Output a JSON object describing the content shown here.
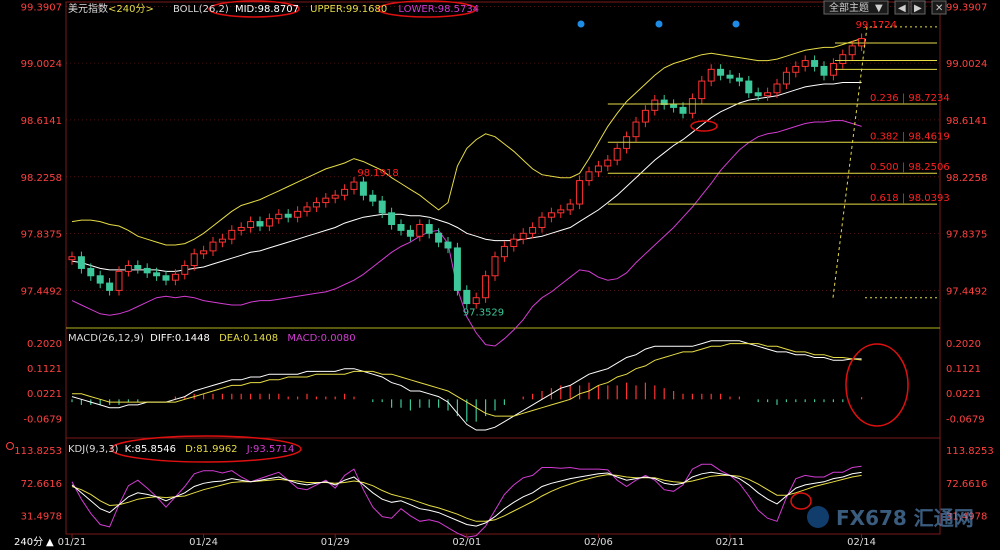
{
  "instrument": "美元指数",
  "period": "240分",
  "toolbar": {
    "theme_label": "全部主题"
  },
  "indicators": {
    "boll": {
      "prefix": "BOLL(26,2)",
      "mid": "MID:98.8707",
      "upper": "UPPER:99.1680",
      "lower": "LOWER:98.5734"
    },
    "macd": {
      "prefix": "MACD(26,12,9)",
      "diff": "DIFF:0.1448",
      "dea": "DEA:0.1408",
      "macd": "MACD:0.0080"
    },
    "kdj": {
      "prefix": "KDJ(9,3,3)",
      "k": "K:85.8546",
      "d": "D:81.9962",
      "j": "J:93.5714"
    }
  },
  "watermark": "FX678 汇通网",
  "colors": {
    "up": "#ff3232",
    "down": "#3cc89a",
    "mid": "#ffffff",
    "upper": "#e6dc46",
    "lower": "#d23cd2",
    "fib": "#e6dc46",
    "annot": "#ff2020",
    "axis_text": "#ff4040",
    "grid": "#7a1a1a"
  },
  "chart_data": [
    {
      "type": "candlestick",
      "title": "美元指数 240分",
      "y_ticks": [
        "99.3907",
        "99.0024",
        "98.6141",
        "98.2258",
        "97.8375",
        "97.4492"
      ],
      "ylim": [
        97.2,
        99.42
      ],
      "x_ticks": [
        "01/21",
        "01/24",
        "01/29",
        "02/01",
        "02/06",
        "02/11",
        "02/14"
      ],
      "x_tick_index": [
        0,
        14,
        28,
        42,
        56,
        70,
        84
      ],
      "annotations": {
        "high": "99.1724",
        "swing_high": "98.1918",
        "low": "97.3529"
      },
      "fib_levels": [
        {
          "label": "0.236 | 98.7234",
          "value": 98.7234
        },
        {
          "label": "0.382 | 98.4619",
          "value": 98.4619
        },
        {
          "label": "0.500 | 98.2506",
          "value": 98.2506
        },
        {
          "label": "0.618 | 98.0393",
          "value": 98.0393
        }
      ],
      "close": [
        97.68,
        97.6,
        97.55,
        97.5,
        97.45,
        97.58,
        97.62,
        97.6,
        97.57,
        97.55,
        97.52,
        97.56,
        97.62,
        97.7,
        97.72,
        97.78,
        97.8,
        97.86,
        97.88,
        97.92,
        97.89,
        97.94,
        97.97,
        97.95,
        97.99,
        98.02,
        98.05,
        98.08,
        98.1,
        98.14,
        98.19,
        98.1,
        98.06,
        97.98,
        97.9,
        97.86,
        97.82,
        97.9,
        97.84,
        97.78,
        97.74,
        97.45,
        97.36,
        97.4,
        97.55,
        97.68,
        97.75,
        97.8,
        97.84,
        97.88,
        97.95,
        97.98,
        98.0,
        98.04,
        98.2,
        98.26,
        98.3,
        98.34,
        98.42,
        98.5,
        98.6,
        98.68,
        98.75,
        98.72,
        98.7,
        98.66,
        98.76,
        98.88,
        98.96,
        98.92,
        98.9,
        98.88,
        98.8,
        98.78,
        98.8,
        98.86,
        98.94,
        98.98,
        99.02,
        98.98,
        98.92,
        99.0,
        99.06,
        99.12,
        99.17
      ],
      "boll_mid": [
        97.65,
        97.64,
        97.62,
        97.6,
        97.59,
        97.59,
        97.59,
        97.59,
        97.59,
        97.59,
        97.58,
        97.58,
        97.59,
        97.6,
        97.61,
        97.63,
        97.65,
        97.67,
        97.69,
        97.71,
        97.72,
        97.74,
        97.76,
        97.78,
        97.8,
        97.82,
        97.84,
        97.86,
        97.88,
        97.91,
        97.93,
        97.95,
        97.96,
        97.97,
        97.97,
        97.97,
        97.96,
        97.96,
        97.95,
        97.93,
        97.91,
        97.88,
        97.84,
        97.82,
        97.8,
        97.79,
        97.79,
        97.79,
        97.8,
        97.81,
        97.82,
        97.84,
        97.86,
        97.88,
        97.92,
        97.96,
        98.0,
        98.05,
        98.1,
        98.16,
        98.22,
        98.28,
        98.34,
        98.39,
        98.44,
        98.48,
        98.53,
        98.58,
        98.63,
        98.67,
        98.7,
        98.73,
        98.75,
        98.76,
        98.77,
        98.78,
        98.8,
        98.82,
        98.84,
        98.85,
        98.86,
        98.86,
        98.87,
        98.87,
        98.87
      ],
      "boll_upper": [
        97.92,
        97.93,
        97.93,
        97.92,
        97.9,
        97.89,
        97.86,
        97.82,
        97.8,
        97.78,
        97.76,
        97.76,
        97.77,
        97.8,
        97.84,
        97.89,
        97.94,
        97.99,
        98.03,
        98.05,
        98.07,
        98.1,
        98.13,
        98.16,
        98.19,
        98.22,
        98.25,
        98.28,
        98.3,
        98.32,
        98.35,
        98.33,
        98.3,
        98.27,
        98.22,
        98.18,
        98.14,
        98.1,
        98.05,
        98.0,
        98.05,
        98.3,
        98.42,
        98.48,
        98.52,
        98.5,
        98.45,
        98.4,
        98.34,
        98.28,
        98.24,
        98.23,
        98.22,
        98.22,
        98.25,
        98.35,
        98.46,
        98.57,
        98.66,
        98.74,
        98.8,
        98.86,
        98.92,
        98.97,
        99.0,
        99.02,
        99.04,
        99.06,
        99.07,
        99.06,
        99.05,
        99.04,
        99.03,
        99.02,
        99.02,
        99.03,
        99.05,
        99.07,
        99.09,
        99.1,
        99.11,
        99.11,
        99.13,
        99.15,
        99.17
      ],
      "boll_lower": [
        97.38,
        97.35,
        97.32,
        97.29,
        97.28,
        97.29,
        97.31,
        97.34,
        97.37,
        97.4,
        97.41,
        97.4,
        97.41,
        97.4,
        97.38,
        97.37,
        97.36,
        97.35,
        97.35,
        97.37,
        97.38,
        97.38,
        97.39,
        97.4,
        97.41,
        97.42,
        97.43,
        97.44,
        97.46,
        97.49,
        97.52,
        97.56,
        97.61,
        97.66,
        97.71,
        97.75,
        97.78,
        97.82,
        97.85,
        97.86,
        97.77,
        97.46,
        97.27,
        97.16,
        97.08,
        97.07,
        97.12,
        97.18,
        97.25,
        97.34,
        97.4,
        97.44,
        97.49,
        97.54,
        97.59,
        97.58,
        97.54,
        97.52,
        97.53,
        97.57,
        97.64,
        97.7,
        97.76,
        97.82,
        97.88,
        97.95,
        98.02,
        98.1,
        98.18,
        98.27,
        98.34,
        98.41,
        98.46,
        98.5,
        98.52,
        98.53,
        98.55,
        98.57,
        98.59,
        98.6,
        98.6,
        98.61,
        98.61,
        98.59,
        98.57
      ]
    },
    {
      "type": "bar+line",
      "title": "MACD(26,12,9)",
      "y_ticks": [
        "0.2020",
        "0.1121",
        "0.0221",
        "-0.0679"
      ],
      "ylim": [
        -0.135,
        0.245
      ],
      "diff": [
        0.01,
        0.0,
        -0.01,
        -0.02,
        -0.03,
        -0.03,
        -0.02,
        -0.02,
        -0.01,
        -0.01,
        -0.01,
        0.0,
        0.01,
        0.03,
        0.04,
        0.05,
        0.06,
        0.07,
        0.07,
        0.08,
        0.08,
        0.09,
        0.09,
        0.09,
        0.09,
        0.1,
        0.1,
        0.1,
        0.1,
        0.11,
        0.11,
        0.1,
        0.09,
        0.08,
        0.06,
        0.05,
        0.03,
        0.03,
        0.02,
        0.01,
        -0.01,
        -0.05,
        -0.09,
        -0.11,
        -0.11,
        -0.1,
        -0.08,
        -0.06,
        -0.04,
        -0.02,
        0.0,
        0.02,
        0.04,
        0.05,
        0.07,
        0.09,
        0.1,
        0.11,
        0.13,
        0.15,
        0.16,
        0.18,
        0.19,
        0.19,
        0.19,
        0.19,
        0.19,
        0.2,
        0.21,
        0.21,
        0.21,
        0.21,
        0.2,
        0.19,
        0.18,
        0.17,
        0.17,
        0.16,
        0.16,
        0.15,
        0.15,
        0.14,
        0.14,
        0.145,
        0.145
      ],
      "dea": [
        0.02,
        0.02,
        0.01,
        0.0,
        -0.01,
        -0.01,
        -0.01,
        -0.01,
        -0.01,
        -0.01,
        -0.01,
        -0.01,
        0.0,
        0.01,
        0.02,
        0.03,
        0.04,
        0.05,
        0.05,
        0.06,
        0.06,
        0.07,
        0.07,
        0.08,
        0.08,
        0.08,
        0.09,
        0.09,
        0.09,
        0.09,
        0.1,
        0.1,
        0.1,
        0.09,
        0.09,
        0.08,
        0.07,
        0.06,
        0.05,
        0.04,
        0.03,
        0.01,
        -0.01,
        -0.03,
        -0.05,
        -0.06,
        -0.06,
        -0.06,
        -0.05,
        -0.04,
        -0.03,
        -0.02,
        -0.01,
        0.0,
        0.02,
        0.03,
        0.05,
        0.06,
        0.08,
        0.09,
        0.11,
        0.12,
        0.14,
        0.15,
        0.16,
        0.17,
        0.17,
        0.18,
        0.19,
        0.19,
        0.2,
        0.2,
        0.2,
        0.2,
        0.19,
        0.19,
        0.18,
        0.17,
        0.17,
        0.16,
        0.16,
        0.15,
        0.15,
        0.145,
        0.141
      ],
      "macd": [
        -0.01,
        -0.02,
        -0.02,
        -0.02,
        -0.02,
        -0.02,
        -0.01,
        -0.01,
        0.0,
        0.0,
        0.0,
        0.01,
        0.01,
        0.02,
        0.02,
        0.02,
        0.02,
        0.02,
        0.02,
        0.02,
        0.02,
        0.02,
        0.02,
        0.01,
        0.01,
        0.02,
        0.01,
        0.01,
        0.01,
        0.02,
        0.01,
        0.0,
        -0.01,
        -0.01,
        -0.03,
        -0.03,
        -0.04,
        -0.03,
        -0.03,
        -0.03,
        -0.04,
        -0.06,
        -0.08,
        -0.08,
        -0.06,
        -0.04,
        -0.02,
        0.0,
        0.01,
        0.02,
        0.03,
        0.04,
        0.05,
        0.05,
        0.05,
        0.06,
        0.05,
        0.05,
        0.05,
        0.06,
        0.05,
        0.06,
        0.05,
        0.04,
        0.03,
        0.02,
        0.02,
        0.02,
        0.02,
        0.02,
        0.01,
        0.01,
        0.0,
        -0.01,
        -0.01,
        -0.02,
        -0.01,
        -0.01,
        -0.01,
        -0.01,
        -0.01,
        -0.01,
        -0.01,
        0.0,
        0.008
      ]
    },
    {
      "type": "line",
      "title": "KDJ(9,3,3)",
      "y_ticks": [
        "113.8253",
        "72.6616",
        "31.4978"
      ],
      "ylim": [
        8,
        128
      ],
      "k": [
        70,
        60,
        50,
        40,
        35,
        45,
        55,
        60,
        58,
        55,
        50,
        55,
        60,
        68,
        72,
        74,
        75,
        78,
        76,
        74,
        76,
        78,
        80,
        76,
        72,
        70,
        72,
        74,
        70,
        76,
        80,
        70,
        60,
        52,
        48,
        50,
        45,
        40,
        38,
        35,
        30,
        25,
        20,
        18,
        22,
        30,
        40,
        48,
        55,
        60,
        68,
        72,
        75,
        78,
        80,
        82,
        84,
        85,
        80,
        76,
        78,
        80,
        78,
        72,
        70,
        72,
        80,
        84,
        86,
        84,
        82,
        78,
        70,
        60,
        52,
        46,
        56,
        66,
        70,
        72,
        74,
        78,
        80,
        84,
        85.85
      ],
      "d": [
        68,
        64,
        58,
        50,
        44,
        45,
        48,
        52,
        54,
        55,
        54,
        55,
        56,
        60,
        64,
        67,
        70,
        73,
        74,
        74,
        75,
        76,
        77,
        76,
        75,
        73,
        73,
        73,
        72,
        73,
        75,
        73,
        69,
        63,
        58,
        55,
        52,
        48,
        44,
        41,
        37,
        33,
        28,
        24,
        24,
        26,
        31,
        37,
        43,
        49,
        56,
        62,
        67,
        71,
        75,
        78,
        81,
        83,
        82,
        80,
        79,
        79,
        79,
        76,
        74,
        73,
        75,
        78,
        81,
        82,
        82,
        81,
        77,
        71,
        64,
        57,
        57,
        60,
        64,
        68,
        71,
        74,
        77,
        80,
        82
      ],
      "j": [
        74,
        52,
        34,
        20,
        17,
        45,
        69,
        76,
        66,
        55,
        42,
        55,
        68,
        84,
        88,
        88,
        85,
        88,
        80,
        74,
        78,
        82,
        86,
        76,
        66,
        64,
        70,
        76,
        66,
        82,
        90,
        64,
        42,
        30,
        28,
        40,
        31,
        24,
        26,
        23,
        16,
        9,
        4,
        6,
        18,
        38,
        58,
        70,
        79,
        82,
        92,
        92,
        91,
        92,
        90,
        90,
        90,
        89,
        76,
        68,
        76,
        82,
        76,
        64,
        62,
        70,
        90,
        96,
        96,
        88,
        82,
        72,
        56,
        38,
        28,
        24,
        54,
        78,
        82,
        80,
        80,
        86,
        86,
        92,
        93.57
      ]
    }
  ]
}
